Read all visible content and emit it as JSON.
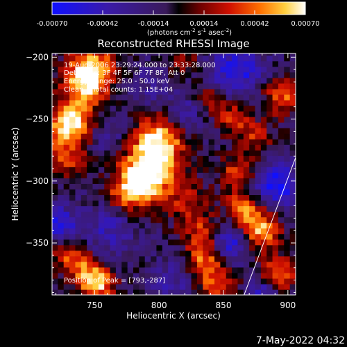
{
  "chart_data": {
    "type": "heatmap",
    "title": "Reconstructed RHESSI Image",
    "xlabel": "Heliocentric X (arcsec)",
    "ylabel": "Heliocentric Y (arcsec)",
    "xlim": [
      717,
      906
    ],
    "ylim": [
      -392,
      -197
    ],
    "x_ticks": [
      750,
      800,
      850,
      900
    ],
    "y_ticks": [
      -200,
      -250,
      -300,
      -350
    ],
    "colorbar": {
      "ticks": [
        "-0.00070",
        "-0.00042",
        "-0.00014",
        "0.00014",
        "0.00042",
        "0.00070"
      ],
      "range": [
        -0.0007,
        0.0007
      ],
      "unit_main": "(photons cm",
      "unit_exp1": "-2",
      "unit_s": " s",
      "unit_exp2": "-1",
      "unit_asec": " asec",
      "unit_exp3": "-2",
      "unit_close": ")"
    },
    "annotations": {
      "time": "19-Aug-2006 23:29:24.000 to 23:33:28.000",
      "detectors": "Detectors: 3F 4F 5F 6F 7F 8F, Att 0",
      "energy": "Energy Range: 25.0 - 50.0 keV",
      "clean": "Clean    Total counts: 1.15E+04",
      "peak": "Position of Peak = [793,-287]"
    },
    "limb_line": {
      "x": [
        866,
        906
      ],
      "y": [
        -392,
        -281
      ]
    },
    "sources": [
      {
        "x": 793,
        "y": -287,
        "v": 0.0007,
        "s": 16
      },
      {
        "x": 800,
        "y": -265,
        "v": 0.0006,
        "s": 13
      },
      {
        "x": 785,
        "y": -305,
        "v": 0.00055,
        "s": 13
      },
      {
        "x": 748,
        "y": -207,
        "v": 0.00065,
        "s": 13
      },
      {
        "x": 742,
        "y": -225,
        "v": 0.00055,
        "s": 12
      },
      {
        "x": 733,
        "y": -252,
        "v": 0.0005,
        "s": 11
      },
      {
        "x": 728,
        "y": -280,
        "v": 0.00045,
        "s": 11
      },
      {
        "x": 727,
        "y": -255,
        "v": 0.0004,
        "s": 10
      },
      {
        "x": 752,
        "y": -383,
        "v": 0.0007,
        "s": 9
      },
      {
        "x": 742,
        "y": -370,
        "v": 0.0004,
        "s": 10
      },
      {
        "x": 728,
        "y": -358,
        "v": 0.00035,
        "s": 9
      },
      {
        "x": 822,
        "y": -318,
        "v": 0.0003,
        "s": 12
      },
      {
        "x": 835,
        "y": -342,
        "v": 0.0004,
        "s": 10
      },
      {
        "x": 837,
        "y": -362,
        "v": 0.00055,
        "s": 11
      },
      {
        "x": 845,
        "y": -383,
        "v": 0.00045,
        "s": 10
      },
      {
        "x": 858,
        "y": -248,
        "v": 0.0004,
        "s": 9
      },
      {
        "x": 862,
        "y": -293,
        "v": 0.00045,
        "s": 10
      },
      {
        "x": 866,
        "y": -322,
        "v": 0.00055,
        "s": 10
      },
      {
        "x": 880,
        "y": -340,
        "v": 0.00065,
        "s": 10
      },
      {
        "x": 892,
        "y": -375,
        "v": 0.0006,
        "s": 10
      },
      {
        "x": 895,
        "y": -232,
        "v": 0.0005,
        "s": 10
      },
      {
        "x": 838,
        "y": -233,
        "v": 0.00035,
        "s": 8
      },
      {
        "x": 771,
        "y": -312,
        "v": 0.00025,
        "s": 8
      },
      {
        "x": 875,
        "y": -265,
        "v": 0.00035,
        "s": 9
      },
      {
        "x": 820,
        "y": -203,
        "v": 0.0003,
        "s": 8
      },
      {
        "x": 860,
        "y": -210,
        "v": -0.0005,
        "s": 14
      },
      {
        "x": 890,
        "y": -303,
        "v": -0.0006,
        "s": 12
      },
      {
        "x": 852,
        "y": -350,
        "v": -0.00055,
        "s": 11
      },
      {
        "x": 722,
        "y": -335,
        "v": -0.0005,
        "s": 10
      },
      {
        "x": 760,
        "y": -340,
        "v": -0.0003,
        "s": 14
      },
      {
        "x": 880,
        "y": -388,
        "v": -0.0004,
        "s": 9
      },
      {
        "x": 810,
        "y": -380,
        "v": -0.00025,
        "s": 12
      },
      {
        "x": 765,
        "y": -265,
        "v": -0.0002,
        "s": 12
      },
      {
        "x": 820,
        "y": -245,
        "v": -0.0003,
        "s": 10
      },
      {
        "x": 790,
        "y": -225,
        "v": -0.00015,
        "s": 12
      }
    ],
    "background_level": -0.0001
  },
  "footer": {
    "date": "7-May-2022 04:32"
  }
}
